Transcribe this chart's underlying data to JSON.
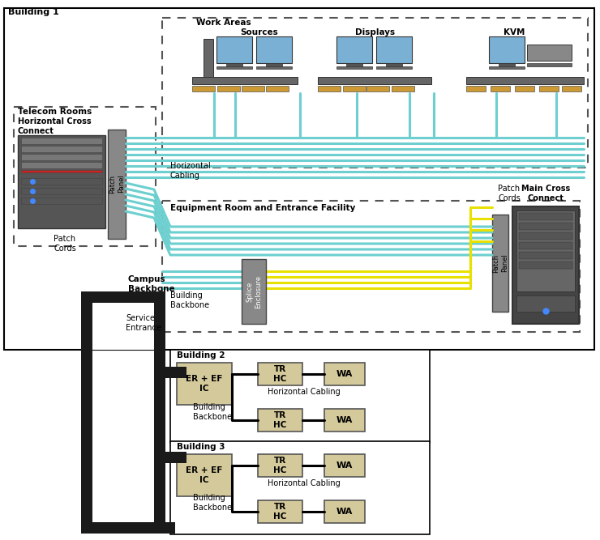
{
  "title": "Building 1",
  "bg_color": "#ffffff",
  "cable_teal": "#6dcfcf",
  "cable_yellow": "#e8e000",
  "cable_outline": "#4aafaf",
  "telecom_label": "Telecom Rooms",
  "hcc_label": "Horizontal Cross\nConnect",
  "patch_panel_label": "Patch\nPanel",
  "patch_cords_label1": "Patch\nCords",
  "patch_cords_label2": "Patch\nCords",
  "horiz_cabling_label": "Horizontal\nCabling",
  "work_areas_label": "Work Areas",
  "sources_label": "Sources",
  "displays_label": "Displays",
  "kvm_label": "KVM",
  "eq_room_label": "Equipment Room and Entrance Facility",
  "building_backbone_label": "Building\nBackbone",
  "campus_backbone_label": "Campus\nBackbone",
  "service_entrance_label": "Service\nEntrance",
  "splice_enclosure_label": "Splice\nEnclosure",
  "main_cross_connect_label": "Main Cross\nConnect",
  "building2_label": "Building 2",
  "building3_label": "Building 3",
  "er_ef_ic_label": "ER + EF\nIC",
  "tr_hc_label": "TR\nHC",
  "wa_label": "WA",
  "horiz_cabling_small": "Horizontal Cabling",
  "building_backbone_small": "Building\nBackbone"
}
